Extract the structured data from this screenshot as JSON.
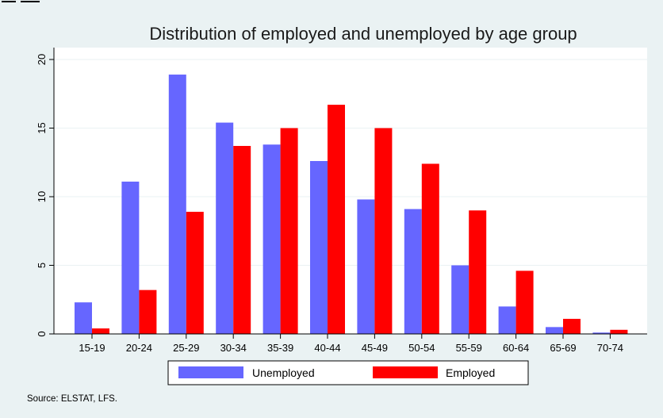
{
  "chart_data": {
    "type": "bar",
    "title": "Distribution of employed and unemployed by age group",
    "xlabel": "",
    "ylabel": "",
    "categories": [
      "15-19",
      "20-24",
      "25-29",
      "30-34",
      "35-39",
      "40-44",
      "45-49",
      "50-54",
      "55-59",
      "60-64",
      "65-69",
      "70-74"
    ],
    "series": [
      {
        "name": "Unemployed",
        "color": "#6666ff",
        "values": [
          2.3,
          11.1,
          18.9,
          15.4,
          13.8,
          12.6,
          9.8,
          9.1,
          5.0,
          2.0,
          0.5,
          0.1
        ]
      },
      {
        "name": "Employed",
        "color": "#ff0000",
        "values": [
          0.4,
          3.2,
          8.9,
          13.7,
          15.0,
          16.7,
          15.0,
          12.4,
          9.0,
          4.6,
          1.1,
          0.3
        ]
      }
    ],
    "ylim": [
      0,
      20
    ],
    "yticks": [
      "0",
      "5",
      "10",
      "15",
      "20"
    ],
    "grid": true,
    "legend_position": "bottom",
    "source": "Source: ELSTAT, LFS."
  },
  "colors": {
    "background": "#eaf2f3",
    "plot_background": "#ffffff",
    "grid": "#eaf2f3"
  }
}
